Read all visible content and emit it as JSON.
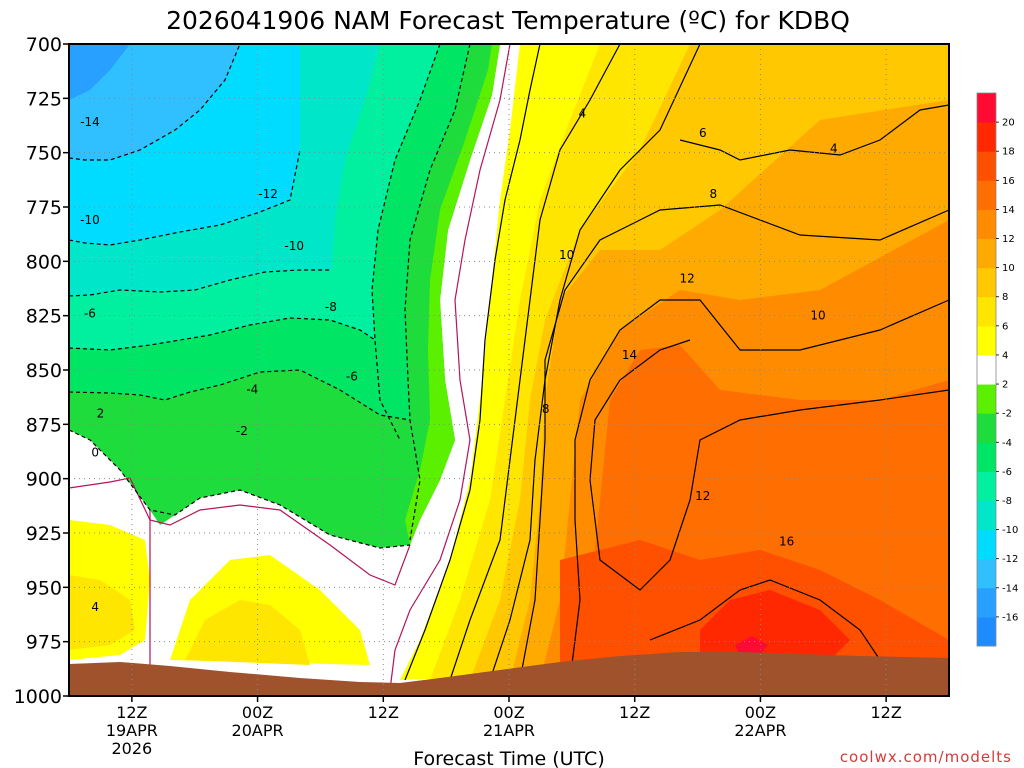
{
  "chart_data": {
    "type": "heatmap",
    "title": "2026041906 NAM Forecast Temperature (ºC) for KDBQ",
    "xlabel": "Forecast Time (UTC)",
    "ylabel": "",
    "y_axis": {
      "ticks": [
        700,
        725,
        750,
        775,
        800,
        825,
        850,
        875,
        900,
        925,
        950,
        975,
        1000
      ],
      "tick_labels": [
        "700",
        "725",
        "750",
        "775",
        "800",
        "825",
        "850",
        "875",
        "900",
        "925",
        "950",
        "975",
        "1000"
      ],
      "range": [
        700,
        1000
      ],
      "inverted": true
    },
    "x_axis": {
      "range_hours": [
        0,
        84
      ],
      "ticks": [
        {
          "hour": 6,
          "lines": [
            "12Z",
            "19APR",
            "2026"
          ]
        },
        {
          "hour": 18,
          "lines": [
            "00Z",
            "20APR"
          ]
        },
        {
          "hour": 30,
          "lines": [
            "12Z"
          ]
        },
        {
          "hour": 42,
          "lines": [
            "00Z",
            "21APR"
          ]
        },
        {
          "hour": 54,
          "lines": [
            "12Z"
          ]
        },
        {
          "hour": 66,
          "lines": [
            "00Z",
            "22APR"
          ]
        },
        {
          "hour": 78,
          "lines": [
            "12Z"
          ]
        }
      ]
    },
    "grid": true,
    "colorbar": {
      "placement": "right",
      "levels": [
        -18,
        -16,
        -14,
        -12,
        -10,
        -8,
        -6,
        -4,
        -2,
        2,
        4,
        6,
        8,
        10,
        12,
        14,
        16,
        18,
        20,
        22
      ],
      "labels": [
        "-16",
        "-14",
        "-12",
        "-10",
        "-8",
        "-6",
        "-4",
        "-2",
        "2",
        "4",
        "6",
        "8",
        "10",
        "12",
        "14",
        "16",
        "18",
        "20"
      ],
      "colors": [
        "#1e8cff",
        "#28a0ff",
        "#30c0ff",
        "#00dcff",
        "#00e6c8",
        "#00f0a0",
        "#00e664",
        "#1edc3c",
        "#5af000",
        "#ffffff",
        "#ffff00",
        "#ffe600",
        "#ffc800",
        "#ffaa00",
        "#ff8c00",
        "#ff6e00",
        "#ff5000",
        "#ff2800",
        "#ff0a32"
      ]
    },
    "terrain_color": "#a0522d",
    "freezing_line_color": "#b4145a",
    "contour_labels": [
      {
        "text": "-14",
        "hour": 2.0,
        "p": 736
      },
      {
        "text": "-12",
        "hour": 19.0,
        "p": 769
      },
      {
        "text": "-10",
        "hour": 2.0,
        "p": 781
      },
      {
        "text": "-10",
        "hour": 21.5,
        "p": 793
      },
      {
        "text": "-8",
        "hour": 25.0,
        "p": 821
      },
      {
        "text": "-6",
        "hour": 2.0,
        "p": 824
      },
      {
        "text": "-6",
        "hour": 27.0,
        "p": 853
      },
      {
        "text": "-4",
        "hour": 17.5,
        "p": 859
      },
      {
        "text": "-2",
        "hour": 16.5,
        "p": 878
      },
      {
        "text": "2",
        "hour": 3.0,
        "p": 870
      },
      {
        "text": "0",
        "hour": 2.5,
        "p": 888
      },
      {
        "text": "4",
        "hour": 2.5,
        "p": 959
      },
      {
        "text": "4",
        "hour": 49.0,
        "p": 732
      },
      {
        "text": "6",
        "hour": 60.5,
        "p": 741
      },
      {
        "text": "4",
        "hour": 73.0,
        "p": 748
      },
      {
        "text": "8",
        "hour": 61.5,
        "p": 769
      },
      {
        "text": "10",
        "hour": 47.5,
        "p": 797
      },
      {
        "text": "12",
        "hour": 59.0,
        "p": 808
      },
      {
        "text": "10",
        "hour": 71.5,
        "p": 825
      },
      {
        "text": "14",
        "hour": 53.5,
        "p": 843
      },
      {
        "text": "8",
        "hour": 45.5,
        "p": 868
      },
      {
        "text": "12",
        "hour": 60.5,
        "p": 908
      },
      {
        "text": "16",
        "hour": 68.5,
        "p": 929
      }
    ]
  },
  "credit": "coolwx.com/modelts"
}
